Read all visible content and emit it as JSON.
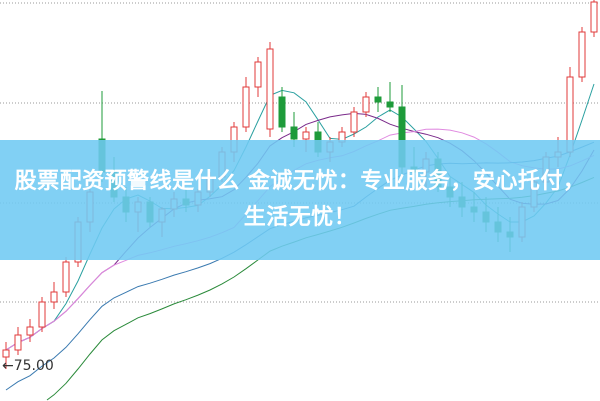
{
  "banner": {
    "title": "股票配资预警线是什么 金诚无忧：专业服务，安心托付，生活无忧！"
  },
  "chart_data": {
    "type": "candlestick",
    "title": "",
    "price_marker": "75.00",
    "grid": true,
    "up_color": "#e03a3a",
    "down_color": "#1e9b3a",
    "ma_colors": [
      "#2aa0a0",
      "#7a2a8a",
      "#e08ae0",
      "#3a7ab0",
      "#2a8a3a"
    ],
    "ma_periods": [
      5,
      10,
      20,
      30,
      60
    ],
    "ohlc": [
      [
        76.0,
        77.5,
        74.8,
        76.7
      ],
      [
        76.7,
        79.0,
        76.2,
        78.2
      ],
      [
        78.2,
        79.8,
        77.5,
        79.0
      ],
      [
        79.0,
        82.0,
        78.5,
        81.5
      ],
      [
        81.5,
        83.5,
        80.8,
        82.5
      ],
      [
        82.5,
        86.0,
        82.0,
        85.5
      ],
      [
        85.5,
        90.0,
        85.0,
        89.5
      ],
      [
        89.5,
        93.5,
        88.5,
        92.5
      ],
      [
        97.8,
        102.6,
        93.5,
        94.5
      ],
      [
        94.5,
        96.0,
        91.5,
        92.0
      ],
      [
        92.0,
        93.0,
        89.5,
        90.5
      ],
      [
        90.5,
        92.0,
        88.5,
        91.5
      ],
      [
        91.5,
        92.0,
        89.0,
        89.5
      ],
      [
        89.5,
        91.0,
        88.0,
        90.8
      ],
      [
        90.8,
        92.5,
        90.0,
        91.8
      ],
      [
        91.8,
        93.0,
        90.5,
        91.2
      ],
      [
        91.2,
        92.8,
        90.5,
        92.5
      ],
      [
        92.5,
        94.5,
        92.0,
        94.0
      ],
      [
        94.0,
        97.0,
        93.5,
        96.5
      ],
      [
        96.5,
        99.5,
        95.5,
        99.0
      ],
      [
        99.0,
        104.0,
        98.5,
        103.0
      ],
      [
        103.0,
        106.0,
        102.0,
        105.5
      ],
      [
        98.8,
        107.5,
        98.0,
        106.8
      ],
      [
        102.0,
        103.0,
        98.5,
        99.0
      ],
      [
        99.0,
        100.5,
        97.0,
        97.8
      ],
      [
        97.8,
        99.0,
        96.5,
        98.5
      ],
      [
        98.5,
        99.5,
        96.0,
        96.5
      ],
      [
        96.5,
        98.0,
        95.5,
        97.5
      ],
      [
        97.5,
        99.0,
        97.0,
        98.5
      ],
      [
        98.5,
        101.0,
        98.0,
        100.5
      ],
      [
        100.5,
        102.5,
        100.0,
        102.0
      ],
      [
        102.0,
        103.0,
        100.5,
        101.5
      ],
      [
        101.5,
        103.5,
        100.5,
        101.0
      ],
      [
        101.0,
        103.2,
        94.0,
        95.0
      ],
      [
        95.0,
        97.0,
        93.5,
        94.5
      ],
      [
        94.5,
        96.5,
        93.0,
        95.8
      ],
      [
        95.8,
        96.5,
        92.5,
        93.0
      ],
      [
        93.0,
        94.0,
        91.0,
        92.0
      ],
      [
        92.0,
        93.5,
        90.0,
        91.0
      ],
      [
        91.0,
        92.5,
        89.5,
        90.5
      ],
      [
        90.5,
        92.0,
        88.5,
        89.5
      ],
      [
        89.5,
        91.0,
        87.5,
        88.5
      ],
      [
        88.5,
        90.0,
        86.5,
        88.0
      ],
      [
        88.0,
        91.5,
        87.5,
        91.0
      ],
      [
        91.0,
        94.0,
        90.5,
        93.5
      ],
      [
        93.5,
        96.5,
        93.0,
        96.0
      ],
      [
        96.0,
        98.0,
        95.0,
        96.5
      ],
      [
        96.5,
        105.0,
        96.0,
        104.0
      ],
      [
        104.0,
        109.0,
        103.5,
        108.5
      ],
      [
        108.5,
        112.0,
        108.0,
        111.5
      ]
    ]
  }
}
